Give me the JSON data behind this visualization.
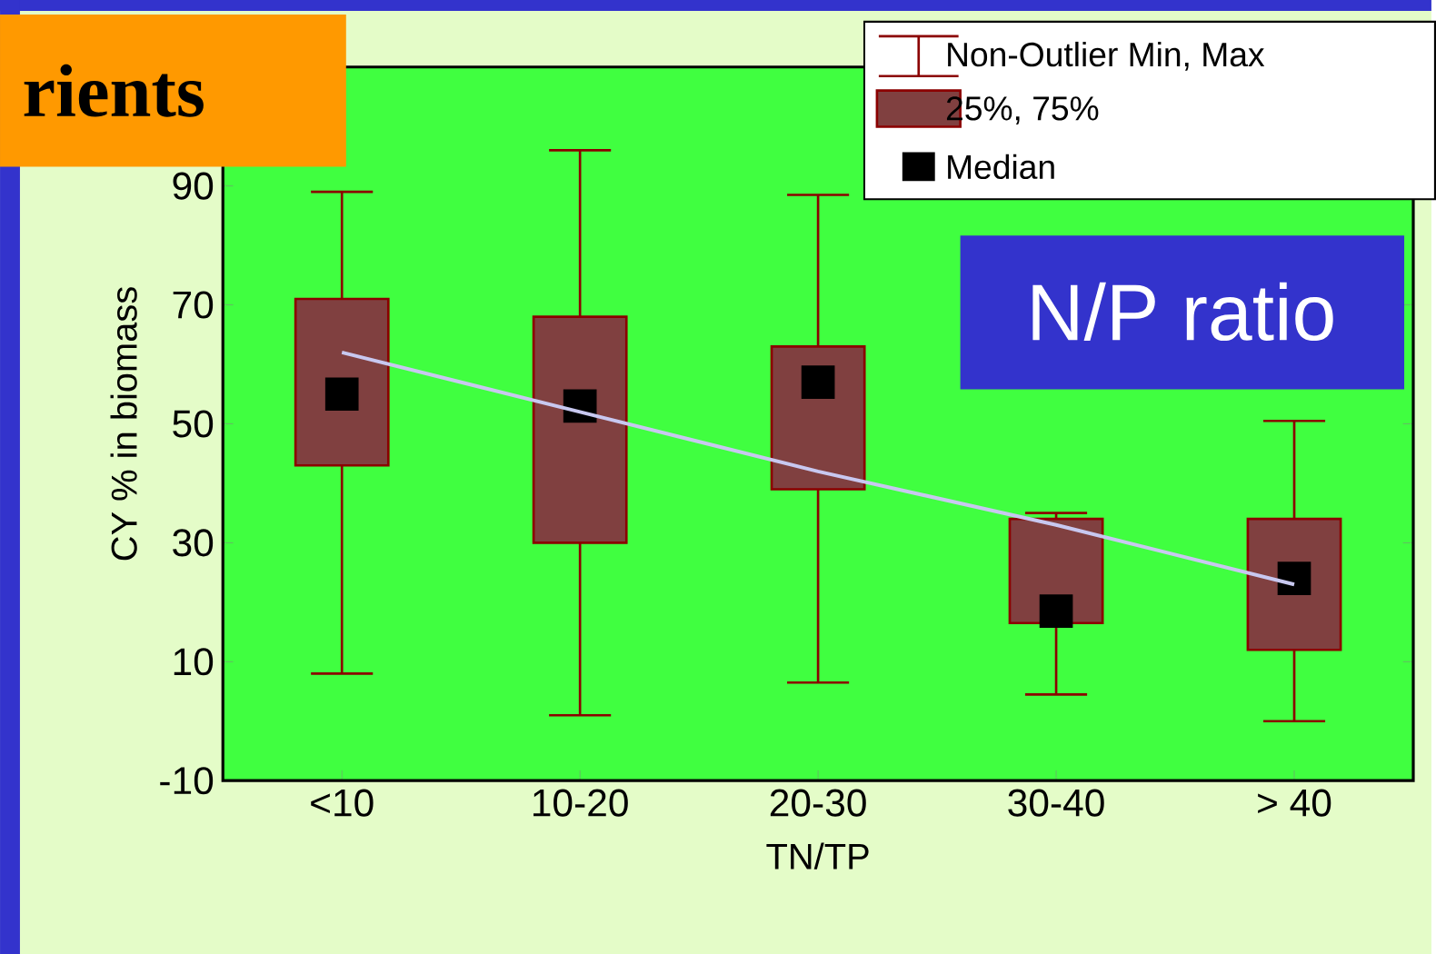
{
  "chart_data": {
    "type": "box",
    "title": "rients",
    "xlabel": "TN/TP",
    "ylabel": "CY % in biomass",
    "categories": [
      "<10",
      "10-20",
      "20-30",
      "30-40",
      "> 40"
    ],
    "ylim": [
      -10,
      110
    ],
    "yticks": [
      -10,
      10,
      30,
      50,
      70,
      90
    ],
    "annotations": [
      "N/P ratio",
      "Non-Outlier Min, Max",
      "25%, 75%",
      "Median"
    ],
    "series": [
      {
        "color": "#804040",
        "boxes": [
          {
            "low": 8,
            "q1": 43,
            "median": 55,
            "q3": 71,
            "high": 89
          },
          {
            "low": 1,
            "q1": 30,
            "median": 53,
            "q3": 68,
            "high": 96
          },
          {
            "low": 6.5,
            "q1": 39,
            "median": 57,
            "q3": 63,
            "high": 88.5
          },
          {
            "low": 4.5,
            "q1": 16.5,
            "median": 18.5,
            "q3": 34,
            "high": 35
          },
          {
            "low": 0,
            "q1": 12,
            "median": 24,
            "q3": 34,
            "high": 50.5
          }
        ]
      },
      {
        "type": "line",
        "color": "#c8c8f0",
        "values": [
          62,
          52,
          42,
          33,
          23
        ]
      }
    ]
  }
}
